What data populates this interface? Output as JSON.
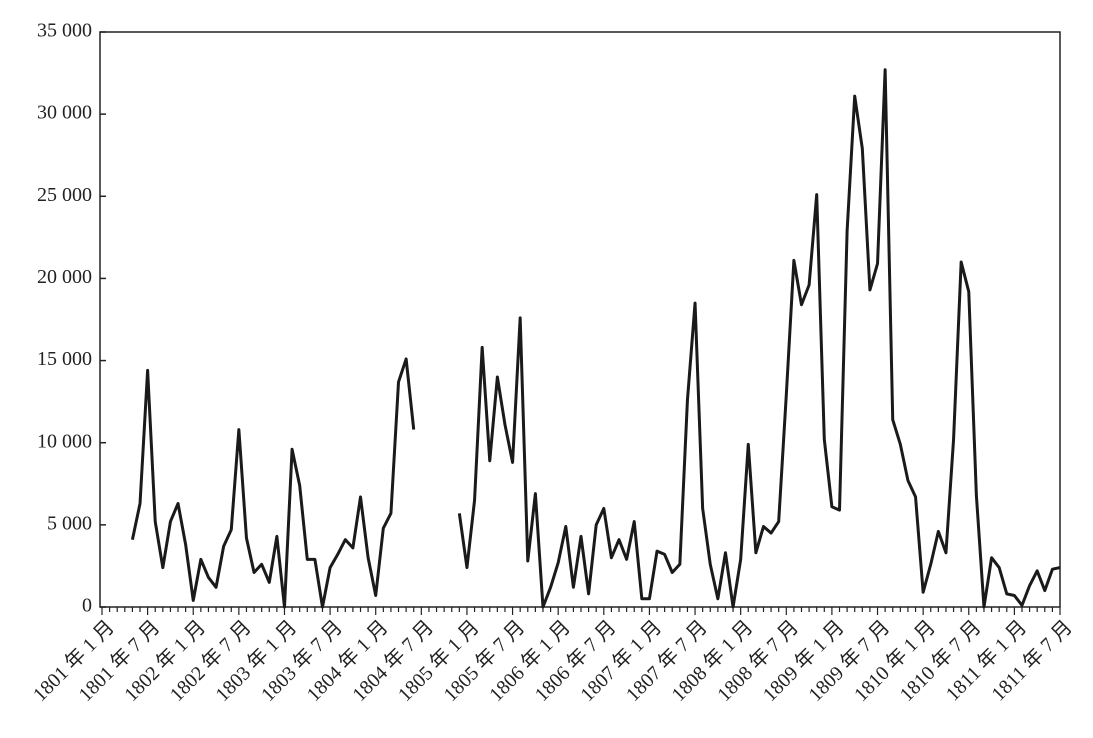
{
  "chart_data": {
    "type": "line",
    "categories": [
      "1801 年 1 月",
      null,
      null,
      null,
      null,
      null,
      "1801 年 7 月",
      null,
      null,
      null,
      null,
      null,
      "1802 年 1 月",
      null,
      null,
      null,
      null,
      null,
      "1802 年 7 月",
      null,
      null,
      null,
      null,
      null,
      "1803 年 1 月",
      null,
      null,
      null,
      null,
      null,
      "1803 年 7 月",
      null,
      null,
      null,
      null,
      null,
      "1804 年 1 月",
      null,
      null,
      null,
      null,
      null,
      "1804 年 7 月",
      null,
      null,
      null,
      null,
      null,
      "1805 年 1 月",
      null,
      null,
      null,
      null,
      null,
      "1805 年 7 月",
      null,
      null,
      null,
      null,
      null,
      "1806 年 1 月",
      null,
      null,
      null,
      null,
      null,
      "1806 年 7 月",
      null,
      null,
      null,
      null,
      null,
      "1807 年 1 月",
      null,
      null,
      null,
      null,
      null,
      "1807 年 7 月",
      null,
      null,
      null,
      null,
      null,
      "1808 年 1 月",
      null,
      null,
      null,
      null,
      null,
      "1808 年 7 月",
      null,
      null,
      null,
      null,
      null,
      "1809 年 1 月",
      null,
      null,
      null,
      null,
      null,
      "1809 年 7 月",
      null,
      null,
      null,
      null,
      null,
      "1810 年 1 月",
      null,
      null,
      null,
      null,
      null,
      "1810 年 7 月",
      null,
      null,
      null,
      null,
      null,
      "1811 年 1 月",
      null,
      null,
      null,
      null,
      null,
      "1811 年 7 月"
    ],
    "values": [
      null,
      null,
      null,
      null,
      4100,
      6300,
      14400,
      5200,
      2400,
      5200,
      6300,
      3800,
      400,
      2900,
      1800,
      1200,
      3700,
      4700,
      10800,
      4200,
      2100,
      2600,
      1500,
      4300,
      0,
      9600,
      7400,
      2900,
      2900,
      0,
      2400,
      3200,
      4100,
      3600,
      6700,
      3000,
      700,
      4800,
      5700,
      13700,
      15100,
      10800,
      null,
      null,
      null,
      null,
      null,
      5700,
      2400,
      6500,
      15800,
      8900,
      14000,
      11100,
      8800,
      17600,
      2800,
      6900,
      0,
      1200,
      2700,
      4900,
      1200,
      4300,
      800,
      5000,
      6000,
      3000,
      4100,
      2900,
      5200,
      500,
      500,
      3400,
      3200,
      2100,
      2600,
      12600,
      18500,
      6000,
      2600,
      500,
      3300,
      0,
      2900,
      9900,
      3300,
      4900,
      4500,
      5200,
      12900,
      21100,
      18400,
      19600,
      25100,
      10200,
      6100,
      5900,
      22900,
      31100,
      27900,
      19300,
      20900,
      32700,
      11400,
      9900,
      7700,
      6700,
      900,
      2600,
      4600,
      3300,
      10200,
      21000,
      19200,
      6800,
      0,
      3000,
      2400,
      800,
      700,
      100,
      1300,
      2200,
      1000,
      2300,
      2400
    ],
    "color": "#1a1a1a",
    "ylim": [
      0,
      35000
    ],
    "yticks": [
      0,
      {
        "value": 5000,
        "label": "5 000"
      },
      {
        "value": 10000,
        "label": "10 000"
      },
      {
        "value": 15000,
        "label": "15 000"
      },
      {
        "value": 20000,
        "label": "20 000"
      },
      {
        "value": 25000,
        "label": "25 000"
      },
      {
        "value": 30000,
        "label": "30 000"
      },
      {
        "value": 35000,
        "label": "35 000"
      }
    ]
  }
}
